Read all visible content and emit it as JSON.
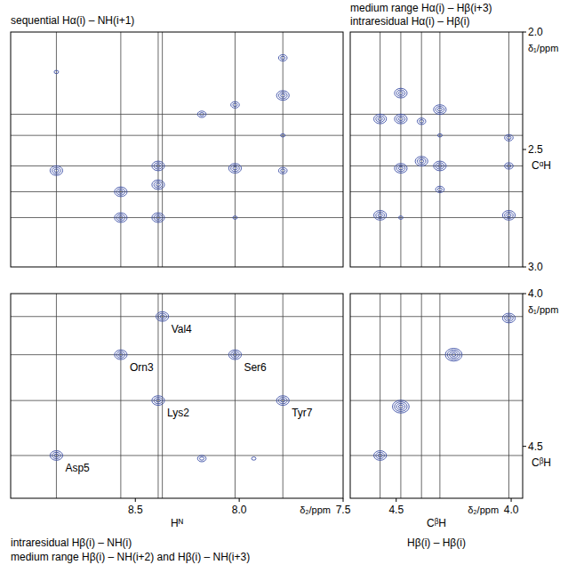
{
  "chart_data": [
    {
      "type": "scatter",
      "title": "sequential Hα(i) – NH(i+1)",
      "color": "#3c4fa6",
      "xlim": [
        9.1,
        7.5
      ],
      "ylim": [
        2.0,
        3.0
      ],
      "tick_labels": false,
      "x": [
        8.88,
        8.88,
        8.57,
        8.57,
        8.39,
        8.39,
        8.39,
        8.18,
        8.02,
        8.02,
        8.02,
        7.79,
        7.79,
        7.79,
        7.79
      ],
      "values": [
        2.17,
        2.59,
        2.68,
        2.79,
        2.57,
        2.65,
        2.79,
        2.35,
        2.31,
        2.58,
        2.79,
        2.11,
        2.27,
        2.44,
        2.59
      ],
      "intensity": [
        1,
        3,
        3,
        3,
        3,
        3,
        3,
        2,
        2,
        3,
        1,
        2,
        3,
        1,
        2
      ],
      "guide_x": [
        8.88,
        8.57,
        8.39,
        8.37,
        8.02,
        7.79
      ],
      "guide_y": [
        2.35,
        2.44,
        2.57,
        2.68,
        2.79
      ]
    },
    {
      "type": "scatter",
      "title": "medium range Hα(i) – Hβ(i+3)",
      "subtitle": "intraresidual Hα(i) – Hβ(i)",
      "color": "#3c4fa6",
      "xlim": [
        4.7,
        3.95
      ],
      "ylim": [
        2.0,
        3.0
      ],
      "tick_labels": "y",
      "yticks": [
        {
          "value": 2,
          "label": "2.0"
        },
        2.5,
        {
          "value": 3,
          "label": "3.0"
        }
      ],
      "ylabel": "CᵅH",
      "y_unit": "δ₁/ppm",
      "x": [
        4.57,
        4.57,
        4.48,
        4.48,
        4.48,
        4.48,
        4.39,
        4.39,
        4.31,
        4.31,
        4.31,
        4.31,
        4.01,
        4.01,
        4.01
      ],
      "values": [
        2.37,
        2.78,
        2.26,
        2.37,
        2.58,
        2.79,
        2.38,
        2.55,
        2.33,
        2.44,
        2.57,
        2.67,
        2.45,
        2.57,
        2.78
      ],
      "intensity": [
        3,
        3,
        3,
        3,
        3,
        1,
        2,
        3,
        3,
        1,
        3,
        2,
        2,
        2,
        3
      ],
      "guide_x": [
        4.57,
        4.48,
        4.39,
        4.31,
        4.01
      ],
      "guide_y": [
        2.35,
        2.44,
        2.57,
        2.68,
        2.79
      ]
    },
    {
      "type": "scatter",
      "title": "intraresidual Hβ(i) – NH(i)",
      "subtitle": "medium range Hβ(i) – NH(i+2) and Hβ(i) – NH(i+3)",
      "color": "#3c4fa6",
      "xlim": [
        9.1,
        7.5
      ],
      "ylim": [
        4.0,
        4.67
      ],
      "tick_labels": "x",
      "xticks": [
        8.5,
        {
          "value": 8,
          "label": "8.0"
        },
        7.5
      ],
      "xlabel": "Hᴺ",
      "x_unit": "δ₂/ppm",
      "x": [
        8.37,
        8.57,
        8.02,
        8.39,
        7.79,
        8.88,
        8.18,
        7.93
      ],
      "values": [
        4.075,
        4.2,
        4.2,
        4.35,
        4.35,
        4.53,
        4.54,
        4.54
      ],
      "intensity": [
        3,
        3,
        3,
        3,
        3,
        3,
        2,
        1
      ],
      "point_labels": [
        "Val4",
        "Orn3",
        "Ser6",
        "Lys2",
        "Tyr7",
        "Asp5",
        null,
        null
      ],
      "guide_x": [
        8.88,
        8.57,
        8.39,
        8.37,
        8.02,
        7.79
      ],
      "guide_y": [
        4.075,
        4.2,
        4.35,
        4.53
      ]
    },
    {
      "type": "scatter",
      "title": "Hβ(i) – Hβ(i)",
      "color": "#3c4fa6",
      "xlim": [
        4.7,
        3.95
      ],
      "ylim": [
        4.0,
        4.67
      ],
      "tick_labels": true,
      "xticks": [
        4.5,
        {
          "value": 4,
          "label": "4.0"
        }
      ],
      "yticks": [
        {
          "value": 4,
          "label": "4.0"
        },
        4.5
      ],
      "xlabel": "CᵝH",
      "x_unit": "δ₂/ppm",
      "ylabel": "CᵝH",
      "y_unit": "δ₁/ppm",
      "x": [
        4.01,
        4.25,
        4.48,
        4.57
      ],
      "values": [
        4.08,
        4.2,
        4.37,
        4.53
      ],
      "intensity": [
        3,
        4,
        4,
        3
      ],
      "guide_x": [
        4.57,
        4.48,
        4.39,
        4.31,
        4.01
      ],
      "guide_y": [
        4.075,
        4.2,
        4.35,
        4.53
      ]
    }
  ]
}
